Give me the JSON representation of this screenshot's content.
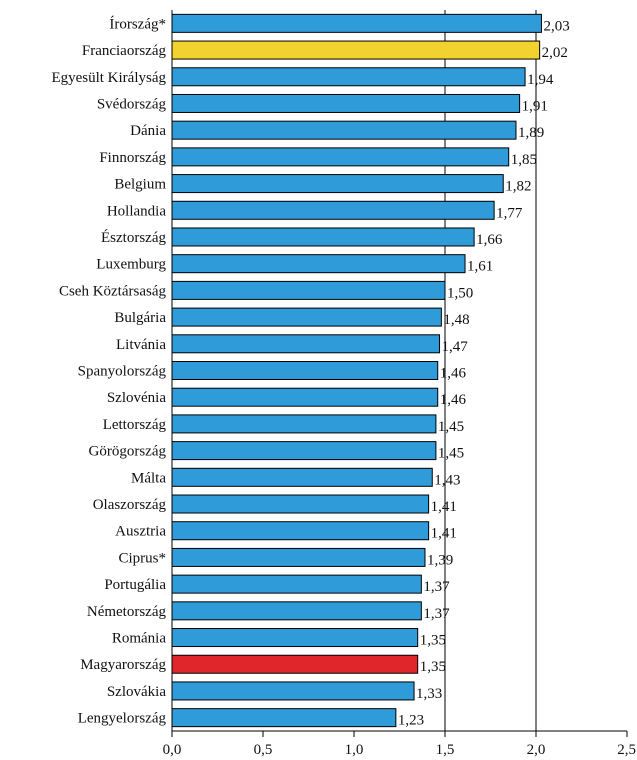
{
  "chart_data": {
    "type": "bar",
    "orientation": "horizontal",
    "categories": [
      "Írország*",
      "Franciaország",
      "Egyesült Királyság",
      "Svédország",
      "Dánia",
      "Finnország",
      "Belgium",
      "Hollandia",
      "Észtország",
      "Luxemburg",
      "Cseh Köztársaság",
      "Bulgária",
      "Litvánia",
      "Spanyolország",
      "Szlovénia",
      "Lettország",
      "Görögország",
      "Málta",
      "Olaszország",
      "Ausztria",
      "Ciprus*",
      "Portugália",
      "Németország",
      "Románia",
      "Magyarország",
      "Szlovákia",
      "Lengyelország"
    ],
    "values": [
      2.03,
      2.02,
      1.94,
      1.91,
      1.89,
      1.85,
      1.82,
      1.77,
      1.66,
      1.61,
      1.5,
      1.48,
      1.47,
      1.46,
      1.46,
      1.45,
      1.45,
      1.43,
      1.41,
      1.41,
      1.39,
      1.37,
      1.37,
      1.35,
      1.35,
      1.33,
      1.23
    ],
    "value_labels": [
      "2,03",
      "2,02",
      "1,94",
      "1,91",
      "1,89",
      "1,85",
      "1,82",
      "1,77",
      "1,66",
      "1,61",
      "1,50",
      "1,48",
      "1,47",
      "1,46",
      "1,46",
      "1,45",
      "1,45",
      "1,43",
      "1,41",
      "1,41",
      "1,39",
      "1,37",
      "1,37",
      "1,35",
      "1,35",
      "1,33",
      "1,23"
    ],
    "xlim": [
      0,
      2.5
    ],
    "x_ticks": [
      0,
      0.5,
      1,
      1.5,
      2,
      2.5
    ],
    "x_tick_labels": [
      "0,0",
      "0,5",
      "1,0",
      "1,5",
      "2,0",
      "2,5"
    ],
    "gridlines_at": [
      1.5,
      2.0
    ],
    "colors": {
      "default": "#2f9bd9",
      "highlight": {
        "Franciaország": "#f2d22e",
        "Magyarország": "#e0262a"
      },
      "bar_stroke": "#000000",
      "gridline": "#000000"
    }
  }
}
